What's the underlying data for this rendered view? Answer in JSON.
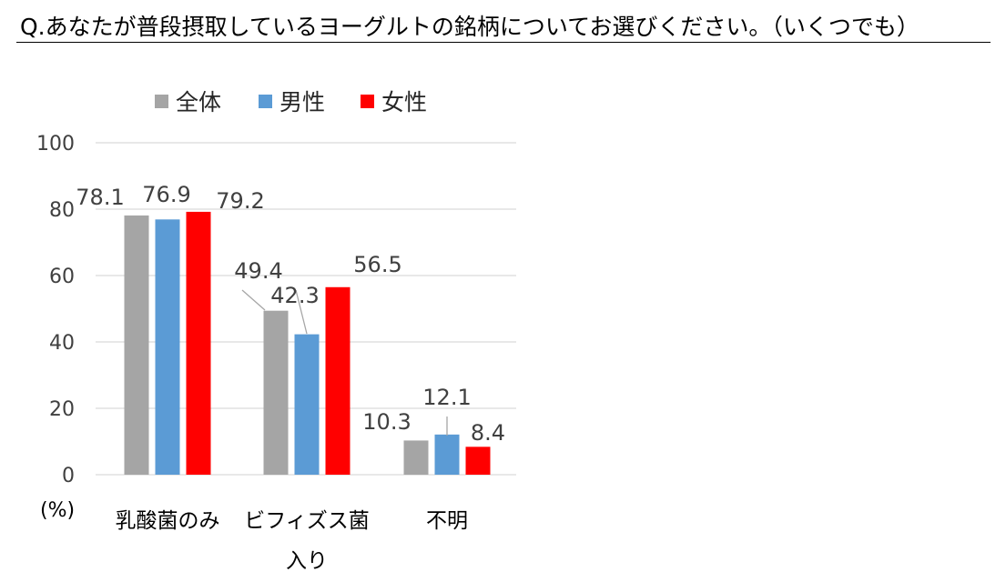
{
  "question": "Q.あなたが普段摂取しているヨーグルトの銘柄についてお選びください。（いくつでも）",
  "chart_data": {
    "type": "bar",
    "categories": [
      [
        "乳酸菌のみ"
      ],
      [
        "ビフィズス菌",
        "入り"
      ],
      [
        "不明"
      ]
    ],
    "series": [
      {
        "name": "全体",
        "values": [
          78.1,
          49.4,
          10.3
        ],
        "labels": [
          "78.1",
          "49.4",
          "10.3"
        ],
        "color": "#a5a5a5"
      },
      {
        "name": "男性",
        "values": [
          76.9,
          42.3,
          12.1
        ],
        "labels": [
          "76.9",
          "42.3",
          "12.1"
        ],
        "color": "#5b9bd5"
      },
      {
        "name": "女性",
        "values": [
          79.2,
          56.5,
          8.4
        ],
        "labels": [
          "79.2",
          "56.5",
          "8.4"
        ],
        "color": "#ff0000"
      }
    ],
    "yticks": [
      "0",
      "20",
      "40",
      "60",
      "80",
      "100"
    ],
    "ylim": [
      0,
      100
    ],
    "unit": "(%)",
    "grid": true,
    "legend": "top"
  }
}
